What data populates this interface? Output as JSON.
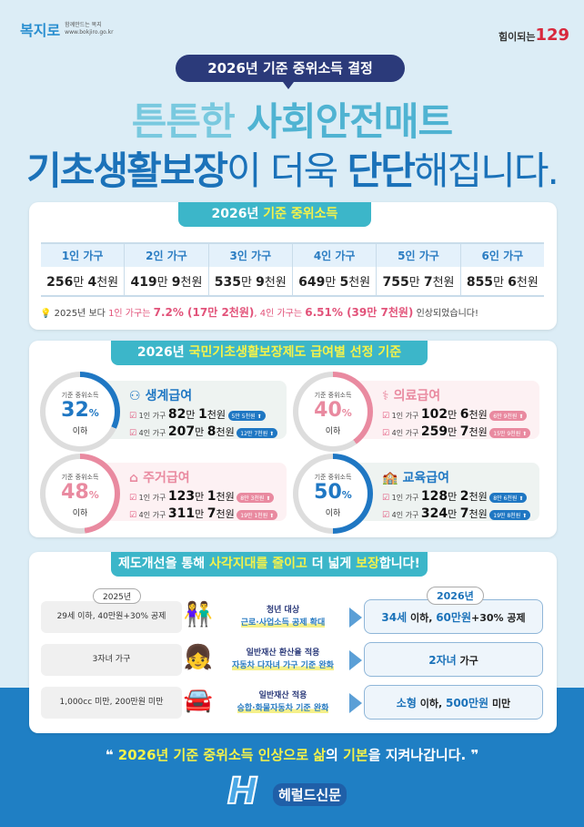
{
  "header": {
    "logo_left": "복지로",
    "logo_left_sub": "함께만드는 복지",
    "logo_left_url": "www.bokjiro.go.kr",
    "logo_right": "힘이되는",
    "logo_right_num": "129",
    "title_pill": "2026년 기준 중위소득 결정",
    "headline1_a": "튼튼한 ",
    "headline1_b": "사회안전매트",
    "headline2_a": "기초생활보장",
    "headline2_b": "이 더욱 ",
    "headline2_c": "단단",
    "headline2_d": "해집니다."
  },
  "median": {
    "title_a": "2026년 ",
    "title_b": "기준 중위소득",
    "columns": [
      "1인 가구",
      "2인 가구",
      "3인 가구",
      "4인 가구",
      "5인 가구",
      "6인 가구"
    ],
    "values": [
      [
        "256",
        "만 ",
        "4",
        "천원"
      ],
      [
        "419",
        "만 ",
        "9",
        "천원"
      ],
      [
        "535",
        "만 ",
        "9",
        "천원"
      ],
      [
        "649",
        "만 ",
        "5",
        "천원"
      ],
      [
        "755",
        "만 ",
        "7",
        "천원"
      ],
      [
        "855",
        "만 ",
        "6",
        "천원"
      ]
    ],
    "note": [
      "2025년 보다 ",
      "1인 가구는 ",
      "7.2% (17만 2천원)",
      ", 4인 가구는 ",
      "6.51% (39만 7천원)",
      " 인상되었습니다!"
    ]
  },
  "benefits": {
    "title_a": "2026년 ",
    "title_b": "국민기초생활보장제도 급여별 선정 기준",
    "items": [
      {
        "name": "생계급여",
        "ring_label": "기준 중위소득",
        "pct": "32",
        "unit": "%",
        "below": "이하",
        "color": "#1f77c3",
        "bg": "#eef3f1",
        "pct_value": 32,
        "rows": [
          {
            "label": "1인 가구",
            "a": "82",
            "b": "만 ",
            "c": "1",
            "d": "천원",
            "badge": "5만 5천원"
          },
          {
            "label": "4인 가구",
            "a": "207",
            "b": "만 ",
            "c": "8",
            "d": "천원",
            "badge": "12만 7천원"
          }
        ]
      },
      {
        "name": "의료급여",
        "ring_label": "기준 중위소득",
        "pct": "40",
        "unit": "%",
        "below": "이하",
        "color": "#e98aa0",
        "bg": "#fdf1f3",
        "pct_value": 40,
        "rows": [
          {
            "label": "1인 가구",
            "a": "102",
            "b": "만 ",
            "c": "6",
            "d": "천원",
            "badge": "6만 9천원"
          },
          {
            "label": "4인 가구",
            "a": "259",
            "b": "만 ",
            "c": "7",
            "d": "천원",
            "badge": "15만 9천원"
          }
        ]
      },
      {
        "name": "주거급여",
        "ring_label": "기준 중위소득",
        "pct": "48",
        "unit": "%",
        "below": "이하",
        "color": "#e98aa0",
        "bg": "#fdf1f3",
        "pct_value": 48,
        "rows": [
          {
            "label": "1인 가구",
            "a": "123",
            "b": "만 ",
            "c": "1",
            "d": "천원",
            "badge": "8만 3천원"
          },
          {
            "label": "4인 가구",
            "a": "311",
            "b": "만 ",
            "c": "7",
            "d": "천원",
            "badge": "19만 1천원"
          }
        ]
      },
      {
        "name": "교육급여",
        "ring_label": "기준 중위소득",
        "pct": "50",
        "unit": "%",
        "below": "이하",
        "color": "#1f77c3",
        "bg": "#eef3f1",
        "pct_value": 50,
        "rows": [
          {
            "label": "1인 가구",
            "a": "128",
            "b": "만 ",
            "c": "2",
            "d": "천원",
            "badge": "8만 6천원"
          },
          {
            "label": "4인 가구",
            "a": "324",
            "b": "만 ",
            "c": "7",
            "d": "천원",
            "badge": "19만 8천원"
          }
        ]
      }
    ]
  },
  "reform": {
    "title": [
      "제도개선을 통해 ",
      "사각지대를 줄이고",
      " 더 넓게 ",
      "보장",
      "합니다!"
    ],
    "year_before": "2025년",
    "year_after": "2026년",
    "rows": [
      {
        "before": "29세 이하, 40만원+30% 공제",
        "icon": "people-icon",
        "mid1": "청년 대상",
        "mid2": "근로·사업소득 공제 확대",
        "after_a": "34세",
        " after_b": "",
        "after": [
          "34세",
          " 이하, ",
          "60만원",
          "+30% 공제"
        ]
      },
      {
        "before": "3자녀 가구",
        "icon": "children-icon",
        "mid1": "일반재산 환산율 적용",
        "mid2": "자동차 다자녀 가구 기준 완화",
        "after": [
          "2자녀",
          " 가구",
          "",
          ""
        ]
      },
      {
        "before": "1,000cc 미만, 200만원 미만",
        "icon": "car-garage-icon",
        "mid1": "일반재산 적용",
        "mid2": "승합·화물자동차 기준 완화",
        "after": [
          "소형",
          " 이하, ",
          "500만원",
          " 미만"
        ]
      }
    ]
  },
  "footer": {
    "a": "2026년 기준 중위소득 인상으로 ",
    "b": "삶",
    "c": "의 ",
    "d": "기본",
    "e": "을 지켜나갑니다.",
    "watermark": "헤럴드신문"
  },
  "colors": {
    "navy": "#2b3a7a",
    "teal": "#3cb6c9",
    "blue": "#1f7fc4",
    "pink": "#e2537a"
  }
}
